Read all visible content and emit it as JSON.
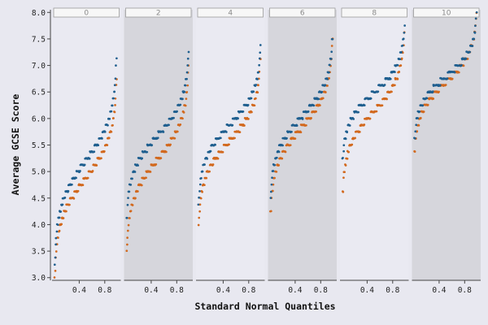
{
  "chart_data": {
    "type": "scatter",
    "xlabel": "Standard Normal Quantiles",
    "ylabel": "Average GCSE Score",
    "xlim": [
      0,
      1
    ],
    "ylim": [
      2.95,
      8.05
    ],
    "xticks": [
      0.4,
      0.8
    ],
    "yticks": [
      3.0,
      3.5,
      4.0,
      4.5,
      5.0,
      5.5,
      6.0,
      6.5,
      7.0,
      7.5,
      8.0
    ],
    "panels": [
      "0",
      "2",
      "4",
      "6",
      "8",
      "10"
    ],
    "shaded_panels": [
      "2",
      "6",
      "10"
    ],
    "series_colors": [
      "#1f5f8f",
      "#d2691e"
    ],
    "series": [
      {
        "panel": "0",
        "blue": {
          "min": 3.3,
          "max": 7.1
        },
        "orange": {
          "min": 3.05,
          "max": 6.7
        }
      },
      {
        "panel": "2",
        "blue": {
          "min": 4.1,
          "max": 7.25
        },
        "orange": {
          "min": 3.5,
          "max": 6.95
        }
      },
      {
        "panel": "4",
        "blue": {
          "min": 4.4,
          "max": 7.35
        },
        "orange": {
          "min": 4.0,
          "max": 7.15
        }
      },
      {
        "panel": "6",
        "blue": {
          "min": 4.5,
          "max": 7.55
        },
        "orange": {
          "min": 4.2,
          "max": 7.45
        }
      },
      {
        "panel": "8",
        "blue": {
          "min": 5.2,
          "max": 7.75
        },
        "orange": {
          "min": 4.6,
          "max": 7.65
        }
      },
      {
        "panel": "10",
        "blue": {
          "min": 5.6,
          "max": 7.95
        },
        "orange": {
          "min": 5.35,
          "max": 8.0
        }
      }
    ]
  }
}
